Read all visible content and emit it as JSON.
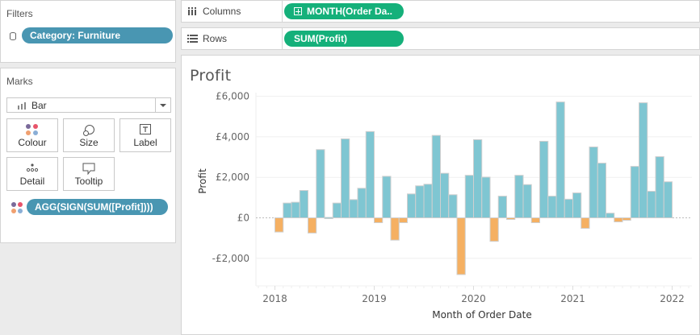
{
  "filters": {
    "title": "Filters",
    "items": [
      {
        "label": "Category: Furniture",
        "icon": "database-icon"
      }
    ]
  },
  "marks": {
    "title": "Marks",
    "mark_type": "Bar",
    "buttons": [
      {
        "label": "Colour",
        "icon": "colour-dots-icon"
      },
      {
        "label": "Size",
        "icon": "size-circles-icon"
      },
      {
        "label": "Label",
        "icon": "text-label-icon"
      },
      {
        "label": "Detail",
        "icon": "detail-dots-icon"
      },
      {
        "label": "Tooltip",
        "icon": "speech-bubble-icon"
      }
    ],
    "colour_field": "AGG(SIGN(SUM([Profit])))"
  },
  "shelves": {
    "columns": {
      "label": "Columns",
      "pill": "MONTH(Order Da.."
    },
    "rows": {
      "label": "Rows",
      "pill": "SUM(Profit)"
    }
  },
  "colors": {
    "positive": "#7fc6d2",
    "negative": "#f5b062",
    "pill_blue": "#4996b2",
    "pill_green": "#15b07a"
  },
  "chart_data": {
    "type": "bar",
    "title": "Profit",
    "xlabel": "Month of Order Date",
    "ylabel": "Profit",
    "ylim": [
      -3200,
      6100
    ],
    "y_ticks": [
      {
        "value": -2000,
        "label": "-£2,000"
      },
      {
        "value": 0,
        "label": "£0"
      },
      {
        "value": 2000,
        "label": "£2,000"
      },
      {
        "value": 4000,
        "label": "£4,000"
      },
      {
        "value": 6000,
        "label": "£6,000"
      }
    ],
    "x_ticks": [
      "2018",
      "2019",
      "2020",
      "2021",
      "2022"
    ],
    "grid": true,
    "series": [
      {
        "name": "SUM(Profit)",
        "categories": [
          "Jan 2018",
          "Feb 2018",
          "Mar 2018",
          "Apr 2018",
          "May 2018",
          "Jun 2018",
          "Jul 2018",
          "Aug 2018",
          "Sep 2018",
          "Oct 2018",
          "Nov 2018",
          "Dec 2018",
          "Jan 2019",
          "Feb 2019",
          "Mar 2019",
          "Apr 2019",
          "May 2019",
          "Jun 2019",
          "Jul 2019",
          "Aug 2019",
          "Sep 2019",
          "Oct 2019",
          "Nov 2019",
          "Dec 2019",
          "Jan 2020",
          "Feb 2020",
          "Mar 2020",
          "Apr 2020",
          "May 2020",
          "Jun 2020",
          "Jul 2020",
          "Aug 2020",
          "Sep 2020",
          "Oct 2020",
          "Nov 2020",
          "Dec 2020",
          "Jan 2021",
          "Feb 2021",
          "Mar 2021",
          "Apr 2021",
          "May 2021",
          "Jun 2021",
          "Jul 2021",
          "Aug 2021",
          "Sep 2021",
          "Oct 2021",
          "Nov 2021",
          "Dec 2021"
        ],
        "values": [
          -700,
          730,
          770,
          1350,
          -750,
          3370,
          20,
          730,
          3900,
          900,
          1460,
          4260,
          -240,
          2050,
          -1100,
          -240,
          1180,
          1580,
          1660,
          4070,
          2200,
          1140,
          -2800,
          2100,
          3860,
          2010,
          -1160,
          1070,
          -80,
          2100,
          1640,
          -240,
          3780,
          1070,
          5720,
          920,
          1230,
          -520,
          3500,
          2700,
          230,
          -200,
          -120,
          2540,
          5680,
          1310,
          3020,
          1780
        ]
      }
    ]
  }
}
